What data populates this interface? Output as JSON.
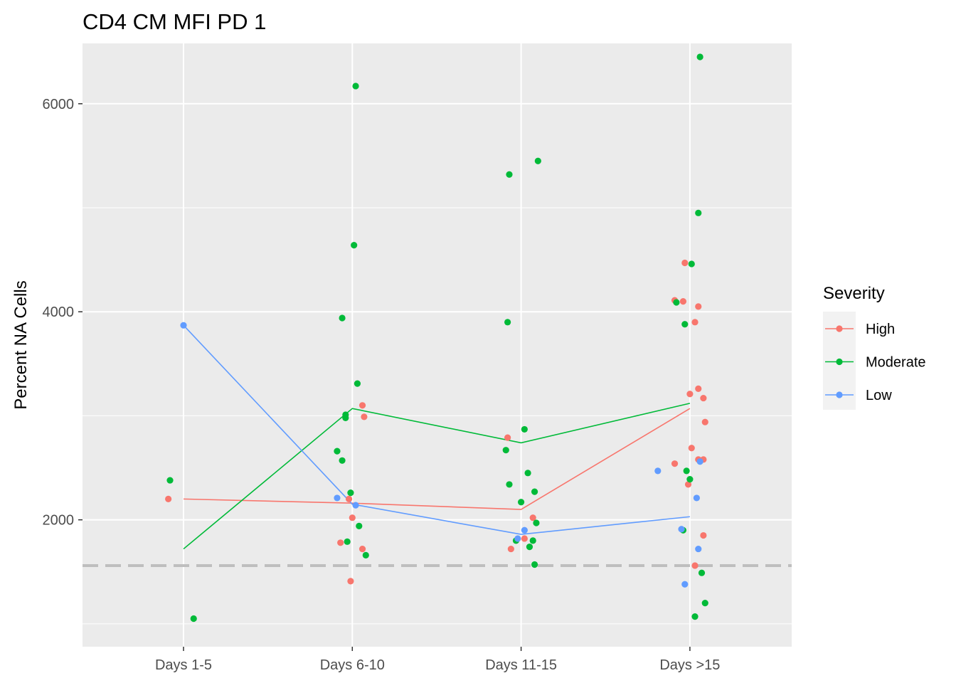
{
  "chart_data": {
    "type": "scatter",
    "title": "CD4 CM MFI PD 1",
    "xlabel": "",
    "ylabel": "Percent NA Cells",
    "categories": [
      "Days 1-5",
      "Days 6-10",
      "Days 11-15",
      "Days >15"
    ],
    "y_ticks": [
      2000,
      4000,
      6000
    ],
    "ylim": [
      780,
      6580
    ],
    "grid": true,
    "reference_line": {
      "y": 1560,
      "style": "dashed",
      "color": "#bebebe"
    },
    "legend": {
      "title": "Severity",
      "position": "right"
    },
    "series": [
      {
        "name": "High",
        "color": "#f8766d",
        "mean_line": [
          2200,
          2160,
          2100,
          3070
        ],
        "points": [
          {
            "x": "Days 1-5",
            "offset": -0.09,
            "y": 2200
          },
          {
            "x": "Days 6-10",
            "offset": 0.06,
            "y": 3100
          },
          {
            "x": "Days 6-10",
            "offset": 0.07,
            "y": 2990
          },
          {
            "x": "Days 6-10",
            "offset": -0.02,
            "y": 2200
          },
          {
            "x": "Days 6-10",
            "offset": 0.0,
            "y": 2020
          },
          {
            "x": "Days 6-10",
            "offset": -0.07,
            "y": 1780
          },
          {
            "x": "Days 6-10",
            "offset": 0.06,
            "y": 1720
          },
          {
            "x": "Days 6-10",
            "offset": -0.01,
            "y": 1410
          },
          {
            "x": "Days 11-15",
            "offset": -0.08,
            "y": 2790
          },
          {
            "x": "Days 11-15",
            "offset": 0.07,
            "y": 2020
          },
          {
            "x": "Days 11-15",
            "offset": 0.02,
            "y": 1820
          },
          {
            "x": "Days 11-15",
            "offset": -0.06,
            "y": 1720
          },
          {
            "x": "Days >15",
            "offset": -0.03,
            "y": 4470
          },
          {
            "x": "Days >15",
            "offset": -0.09,
            "y": 4110
          },
          {
            "x": "Days >15",
            "offset": -0.04,
            "y": 4100
          },
          {
            "x": "Days >15",
            "offset": 0.05,
            "y": 4050
          },
          {
            "x": "Days >15",
            "offset": 0.03,
            "y": 3900
          },
          {
            "x": "Days >15",
            "offset": 0.05,
            "y": 3260
          },
          {
            "x": "Days >15",
            "offset": 0.0,
            "y": 3210
          },
          {
            "x": "Days >15",
            "offset": 0.08,
            "y": 3170
          },
          {
            "x": "Days >15",
            "offset": 0.09,
            "y": 2940
          },
          {
            "x": "Days >15",
            "offset": 0.01,
            "y": 2690
          },
          {
            "x": "Days >15",
            "offset": 0.05,
            "y": 2580
          },
          {
            "x": "Days >15",
            "offset": 0.08,
            "y": 2580
          },
          {
            "x": "Days >15",
            "offset": -0.09,
            "y": 2540
          },
          {
            "x": "Days >15",
            "offset": -0.01,
            "y": 2340
          },
          {
            "x": "Days >15",
            "offset": 0.08,
            "y": 1850
          },
          {
            "x": "Days >15",
            "offset": 0.03,
            "y": 1560
          }
        ]
      },
      {
        "name": "Moderate",
        "color": "#00ba38",
        "mean_line": [
          1720,
          3070,
          2740,
          3120
        ],
        "points": [
          {
            "x": "Days 1-5",
            "offset": -0.08,
            "y": 2380
          },
          {
            "x": "Days 1-5",
            "offset": 0.06,
            "y": 1050
          },
          {
            "x": "Days 6-10",
            "offset": 0.02,
            "y": 6170
          },
          {
            "x": "Days 6-10",
            "offset": 0.01,
            "y": 4640
          },
          {
            "x": "Days 6-10",
            "offset": -0.06,
            "y": 3940
          },
          {
            "x": "Days 6-10",
            "offset": 0.03,
            "y": 3310
          },
          {
            "x": "Days 6-10",
            "offset": -0.04,
            "y": 3010
          },
          {
            "x": "Days 6-10",
            "offset": -0.04,
            "y": 2980
          },
          {
            "x": "Days 6-10",
            "offset": -0.09,
            "y": 2660
          },
          {
            "x": "Days 6-10",
            "offset": -0.06,
            "y": 2570
          },
          {
            "x": "Days 6-10",
            "offset": -0.01,
            "y": 2260
          },
          {
            "x": "Days 6-10",
            "offset": 0.04,
            "y": 1940
          },
          {
            "x": "Days 6-10",
            "offset": -0.03,
            "y": 1790
          },
          {
            "x": "Days 6-10",
            "offset": 0.08,
            "y": 1660
          },
          {
            "x": "Days 11-15",
            "offset": -0.07,
            "y": 5320
          },
          {
            "x": "Days 11-15",
            "offset": 0.1,
            "y": 5450
          },
          {
            "x": "Days 11-15",
            "offset": -0.08,
            "y": 3900
          },
          {
            "x": "Days 11-15",
            "offset": 0.02,
            "y": 2870
          },
          {
            "x": "Days 11-15",
            "offset": -0.09,
            "y": 2670
          },
          {
            "x": "Days 11-15",
            "offset": 0.04,
            "y": 2450
          },
          {
            "x": "Days 11-15",
            "offset": -0.07,
            "y": 2340
          },
          {
            "x": "Days 11-15",
            "offset": 0.08,
            "y": 2270
          },
          {
            "x": "Days 11-15",
            "offset": 0.0,
            "y": 2170
          },
          {
            "x": "Days 11-15",
            "offset": 0.09,
            "y": 1970
          },
          {
            "x": "Days 11-15",
            "offset": -0.03,
            "y": 1800
          },
          {
            "x": "Days 11-15",
            "offset": 0.07,
            "y": 1800
          },
          {
            "x": "Days 11-15",
            "offset": 0.05,
            "y": 1740
          },
          {
            "x": "Days 11-15",
            "offset": 0.08,
            "y": 1570
          },
          {
            "x": "Days >15",
            "offset": 0.06,
            "y": 6450
          },
          {
            "x": "Days >15",
            "offset": 0.05,
            "y": 4950
          },
          {
            "x": "Days >15",
            "offset": 0.01,
            "y": 4460
          },
          {
            "x": "Days >15",
            "offset": -0.08,
            "y": 4090
          },
          {
            "x": "Days >15",
            "offset": -0.03,
            "y": 3880
          },
          {
            "x": "Days >15",
            "offset": -0.02,
            "y": 2470
          },
          {
            "x": "Days >15",
            "offset": 0.0,
            "y": 2390
          },
          {
            "x": "Days >15",
            "offset": -0.04,
            "y": 1900
          },
          {
            "x": "Days >15",
            "offset": 0.07,
            "y": 1490
          },
          {
            "x": "Days >15",
            "offset": 0.09,
            "y": 1200
          },
          {
            "x": "Days >15",
            "offset": 0.03,
            "y": 1070
          }
        ]
      },
      {
        "name": "Low",
        "color": "#619cff",
        "mean_line": [
          3870,
          2150,
          1860,
          2030
        ],
        "points": [
          {
            "x": "Days 1-5",
            "offset": 0.0,
            "y": 3870
          },
          {
            "x": "Days 6-10",
            "offset": -0.09,
            "y": 2210
          },
          {
            "x": "Days 6-10",
            "offset": 0.02,
            "y": 2140
          },
          {
            "x": "Days 11-15",
            "offset": 0.02,
            "y": 1900
          },
          {
            "x": "Days 11-15",
            "offset": -0.02,
            "y": 1820
          },
          {
            "x": "Days >15",
            "offset": -0.19,
            "y": 2470
          },
          {
            "x": "Days >15",
            "offset": 0.06,
            "y": 2560
          },
          {
            "x": "Days >15",
            "offset": 0.04,
            "y": 2210
          },
          {
            "x": "Days >15",
            "offset": -0.05,
            "y": 1910
          },
          {
            "x": "Days >15",
            "offset": 0.05,
            "y": 1720
          },
          {
            "x": "Days >15",
            "offset": -0.03,
            "y": 1380
          }
        ]
      }
    ]
  }
}
